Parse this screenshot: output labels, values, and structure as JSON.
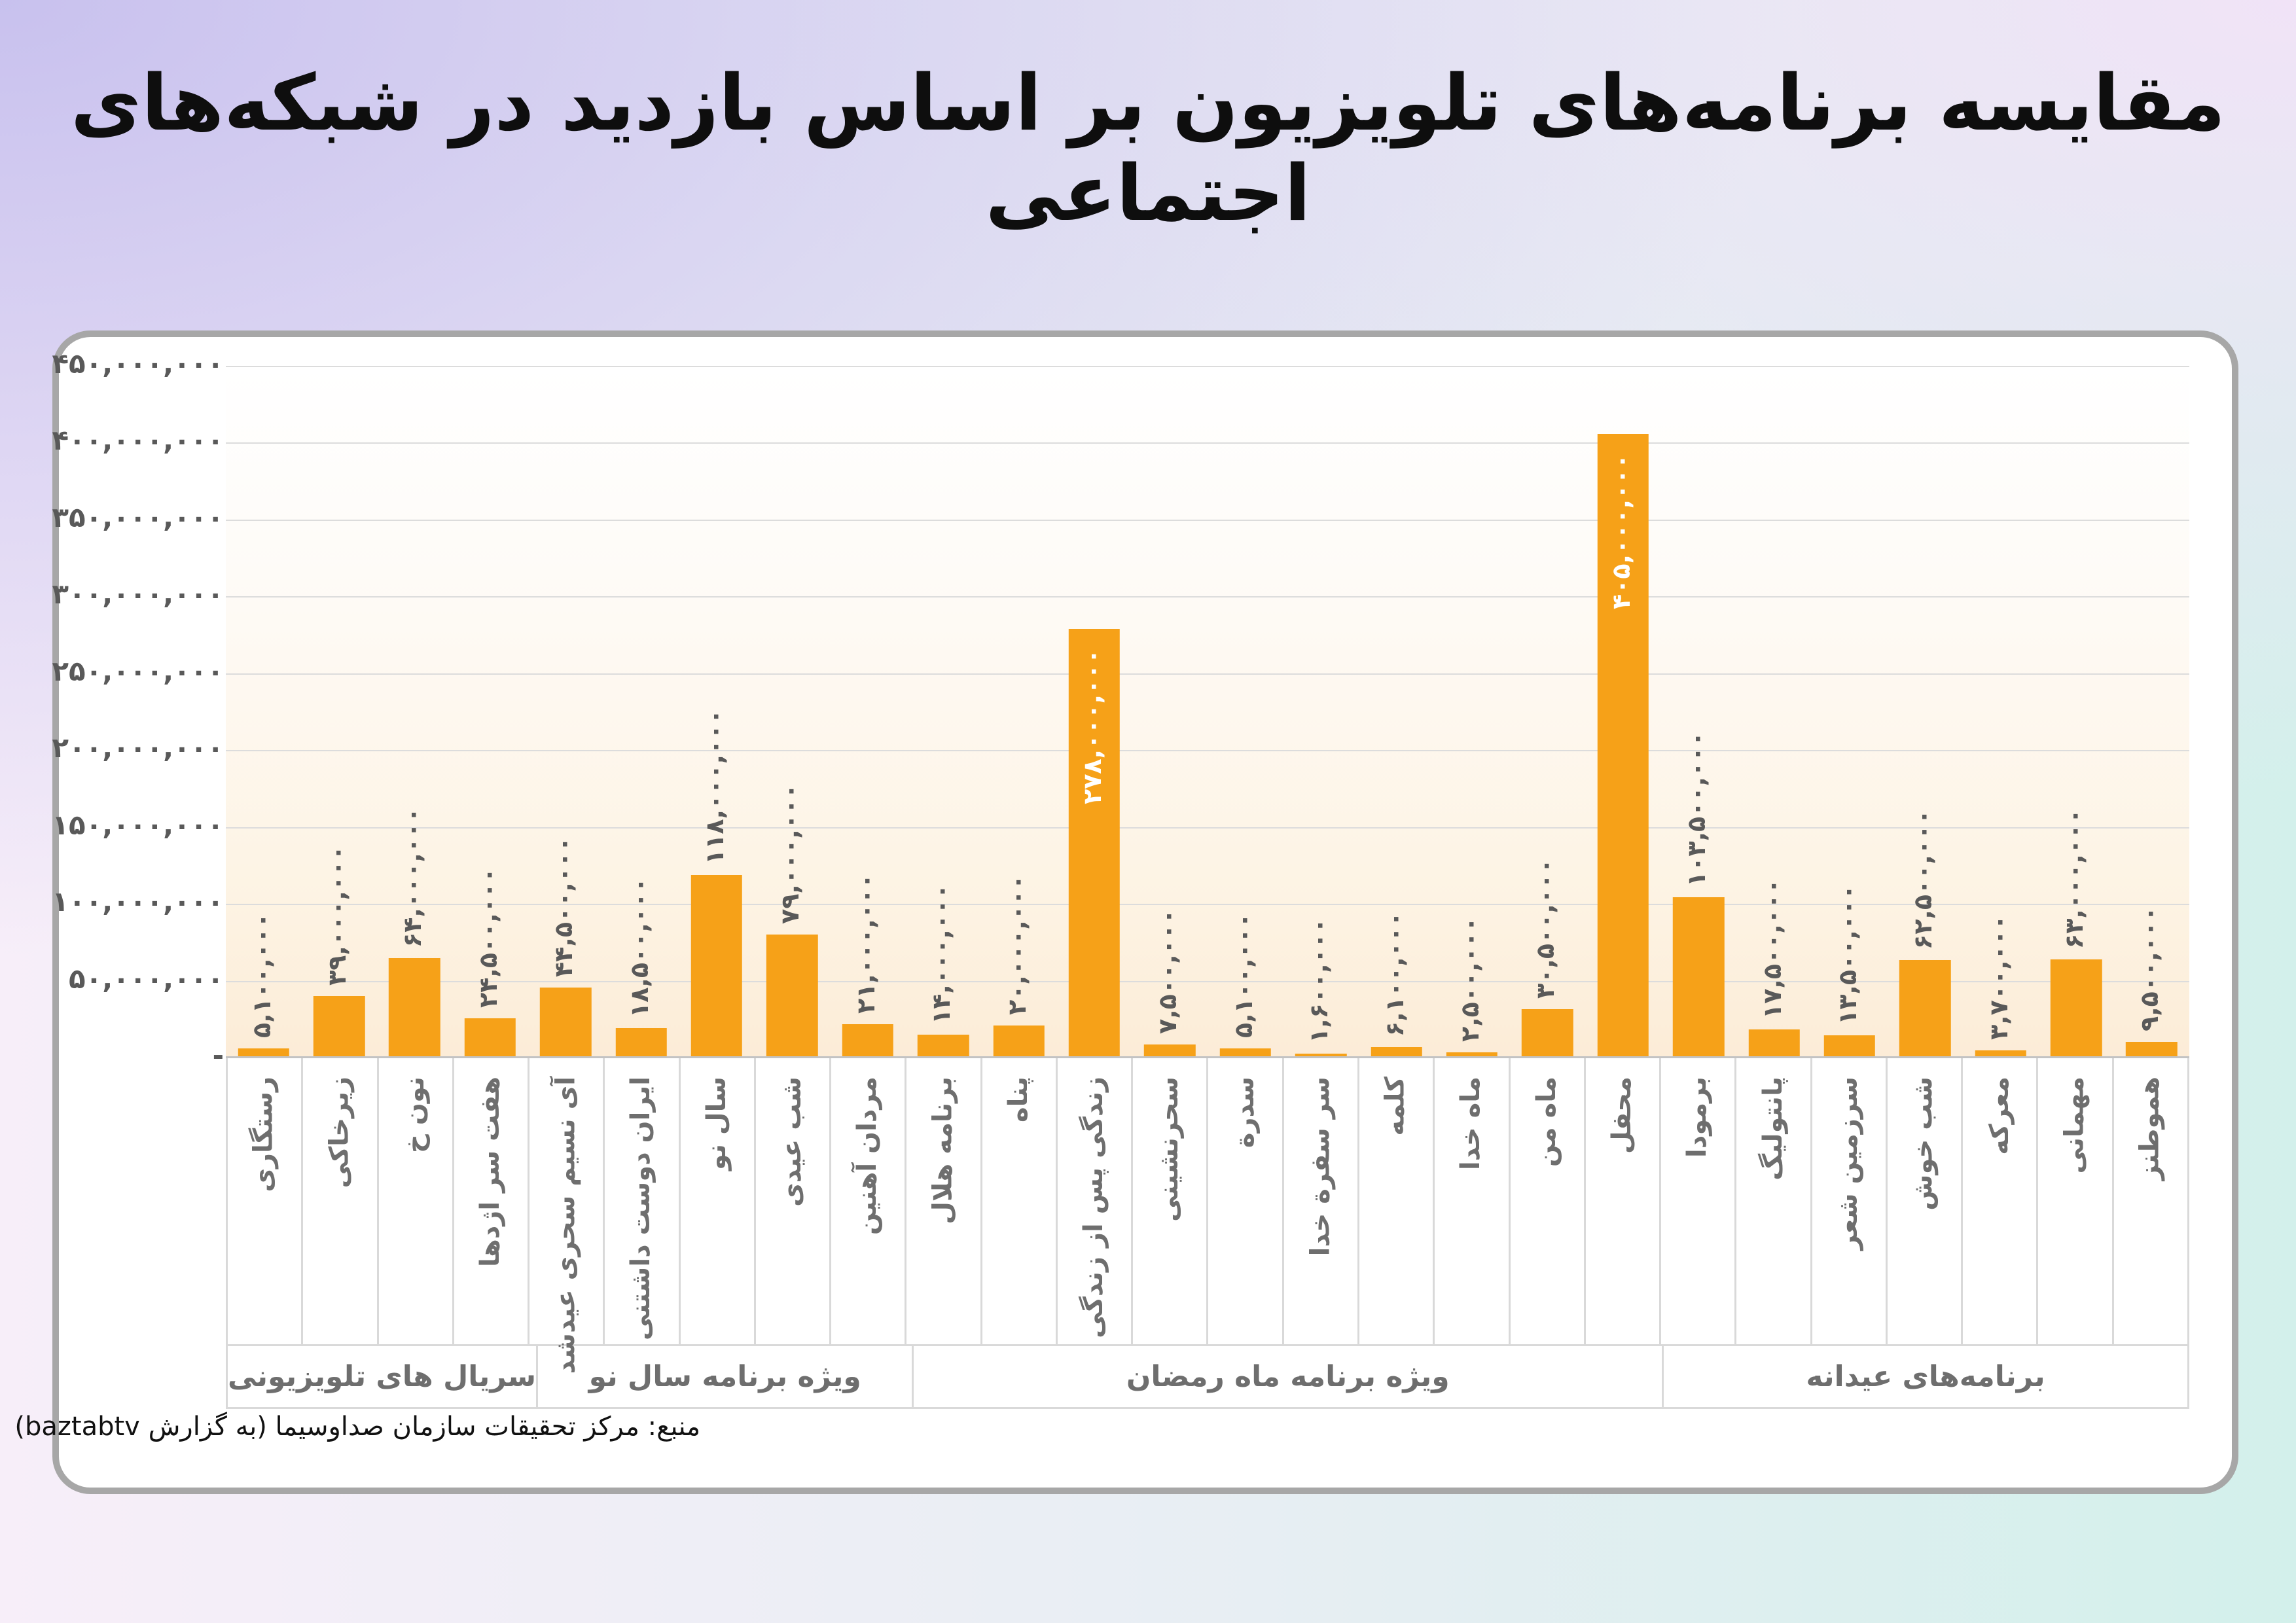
{
  "title": "مقایسه برنامه‌های تلویزیون بر اساس بازدید در شبکه‌های اجتماعی",
  "source": "منبع: مرکز تحقیقات سازمان صداوسیما (به گزارش baztabtv)",
  "colors": {
    "bar": "#f6a118",
    "value_label": "#595959",
    "value_label_inside": "#ffffff",
    "category_label": "#6e6e6e",
    "gridline": "#dcdcdc",
    "card_border": "#a7a7a7"
  },
  "chart_data": {
    "type": "bar",
    "ylim": [
      0,
      450000000
    ],
    "ymax": 450000000,
    "grid": true,
    "legend": "none",
    "yticks": [
      {
        "value": 450000000,
        "label": "۴۵۰,۰۰۰,۰۰۰"
      },
      {
        "value": 400000000,
        "label": "۴۰۰,۰۰۰,۰۰۰"
      },
      {
        "value": 350000000,
        "label": "۳۵۰,۰۰۰,۰۰۰"
      },
      {
        "value": 300000000,
        "label": "۳۰۰,۰۰۰,۰۰۰"
      },
      {
        "value": 250000000,
        "label": "۲۵۰,۰۰۰,۰۰۰"
      },
      {
        "value": 200000000,
        "label": "۲۰۰,۰۰۰,۰۰۰"
      },
      {
        "value": 150000000,
        "label": "۱۵۰,۰۰۰,۰۰۰"
      },
      {
        "value": 100000000,
        "label": "۱۰۰,۰۰۰,۰۰۰"
      },
      {
        "value": 50000000,
        "label": "۵۰,۰۰۰,۰۰۰"
      },
      {
        "value": 0,
        "label": "-"
      }
    ],
    "groups": [
      {
        "label": "سریال های تلویزیونی",
        "bars": [
          {
            "name": "رستگاری",
            "value": 5100000,
            "value_label": "۵,۱۰۰,۰۰۰",
            "label_inside": false
          },
          {
            "name": "زیرخاکی",
            "value": 39000000,
            "value_label": "۳۹,۰۰۰,۰۰۰",
            "label_inside": false
          },
          {
            "name": "نون خ",
            "value": 64000000,
            "value_label": "۶۴,۰۰۰,۰۰۰",
            "label_inside": false
          },
          {
            "name": "هفت سر اژدها",
            "value": 24500000,
            "value_label": "۲۴,۵۰۰,۰۰۰",
            "label_inside": false
          }
        ]
      },
      {
        "label": "ویژه برنامه سال نو",
        "bars": [
          {
            "name": "آی نسیم سحری عیدشد",
            "value": 44500000,
            "value_label": "۴۴,۵۰۰,۰۰۰",
            "label_inside": false
          },
          {
            "name": "ایران دوست داشتنی",
            "value": 18500000,
            "value_label": "۱۸,۵۰۰,۰۰۰",
            "label_inside": false
          },
          {
            "name": "سال نو",
            "value": 118000000,
            "value_label": "۱۱۸,۰۰۰,۰۰۰",
            "label_inside": false
          },
          {
            "name": "شب عیدی",
            "value": 79000000,
            "value_label": "۷۹,۰۰۰,۰۰۰",
            "label_inside": false
          },
          {
            "name": "مردان آهنین",
            "value": 21000000,
            "value_label": "۲۱,۰۰۰,۰۰۰",
            "label_inside": false
          }
        ]
      },
      {
        "label": "ویژه برنامه ماه رمضان",
        "bars": [
          {
            "name": "برنامه هلال",
            "value": 14000000,
            "value_label": "۱۴,۰۰۰,۰۰۰",
            "label_inside": false
          },
          {
            "name": "پناه",
            "value": 20000000,
            "value_label": "۲۰,۰۰۰,۰۰۰",
            "label_inside": false
          },
          {
            "name": "زندگی پس از زندگی",
            "value": 278000000,
            "value_label": "۲۷۸,۰۰۰,۰۰۰",
            "label_inside": true
          },
          {
            "name": "سحرنشینی",
            "value": 7500000,
            "value_label": "۷,۵۰۰,۰۰۰",
            "label_inside": false
          },
          {
            "name": "سدرة",
            "value": 5100000,
            "value_label": "۵,۱۰۰,۰۰۰",
            "label_inside": false
          },
          {
            "name": "سر سفرة خدا",
            "value": 1600000,
            "value_label": "۱,۶۰۰,۰۰۰",
            "label_inside": false
          },
          {
            "name": "کلمه",
            "value": 6100000,
            "value_label": "۶,۱۰۰,۰۰۰",
            "label_inside": false
          },
          {
            "name": "ماه خدا",
            "value": 2500000,
            "value_label": "۲,۵۰۰,۰۰۰",
            "label_inside": false
          },
          {
            "name": "ماه من",
            "value": 30500000,
            "value_label": "۳۰,۵۰۰,۰۰۰",
            "label_inside": false
          },
          {
            "name": "محفل",
            "value": 405000000,
            "value_label": "۴۰۵,۰۰۰,۰۰۰",
            "label_inside": true
          }
        ]
      },
      {
        "label": "برنامه‌های عیدانه",
        "bars": [
          {
            "name": "برمودا",
            "value": 103500000,
            "value_label": "۱۰۳,۵۰۰,۰۰۰",
            "label_inside": false
          },
          {
            "name": "پانتولیگ",
            "value": 17500000,
            "value_label": "۱۷,۵۰۰,۰۰۰",
            "label_inside": false
          },
          {
            "name": "سرزمین شعر",
            "value": 13500000,
            "value_label": "۱۳,۵۰۰,۰۰۰",
            "label_inside": false
          },
          {
            "name": "شب خوش",
            "value": 62500000,
            "value_label": "۶۲,۵۰۰,۰۰۰",
            "label_inside": false
          },
          {
            "name": "معرکه",
            "value": 3700000,
            "value_label": "۳,۷۰۰,۰۰۰",
            "label_inside": false
          },
          {
            "name": "مهمانی",
            "value": 63000000,
            "value_label": "۶۳,۰۰۰,۰۰۰",
            "label_inside": false
          },
          {
            "name": "هموطنز",
            "value": 9500000,
            "value_label": "۹,۵۰۰,۰۰۰",
            "label_inside": false
          }
        ]
      }
    ]
  }
}
